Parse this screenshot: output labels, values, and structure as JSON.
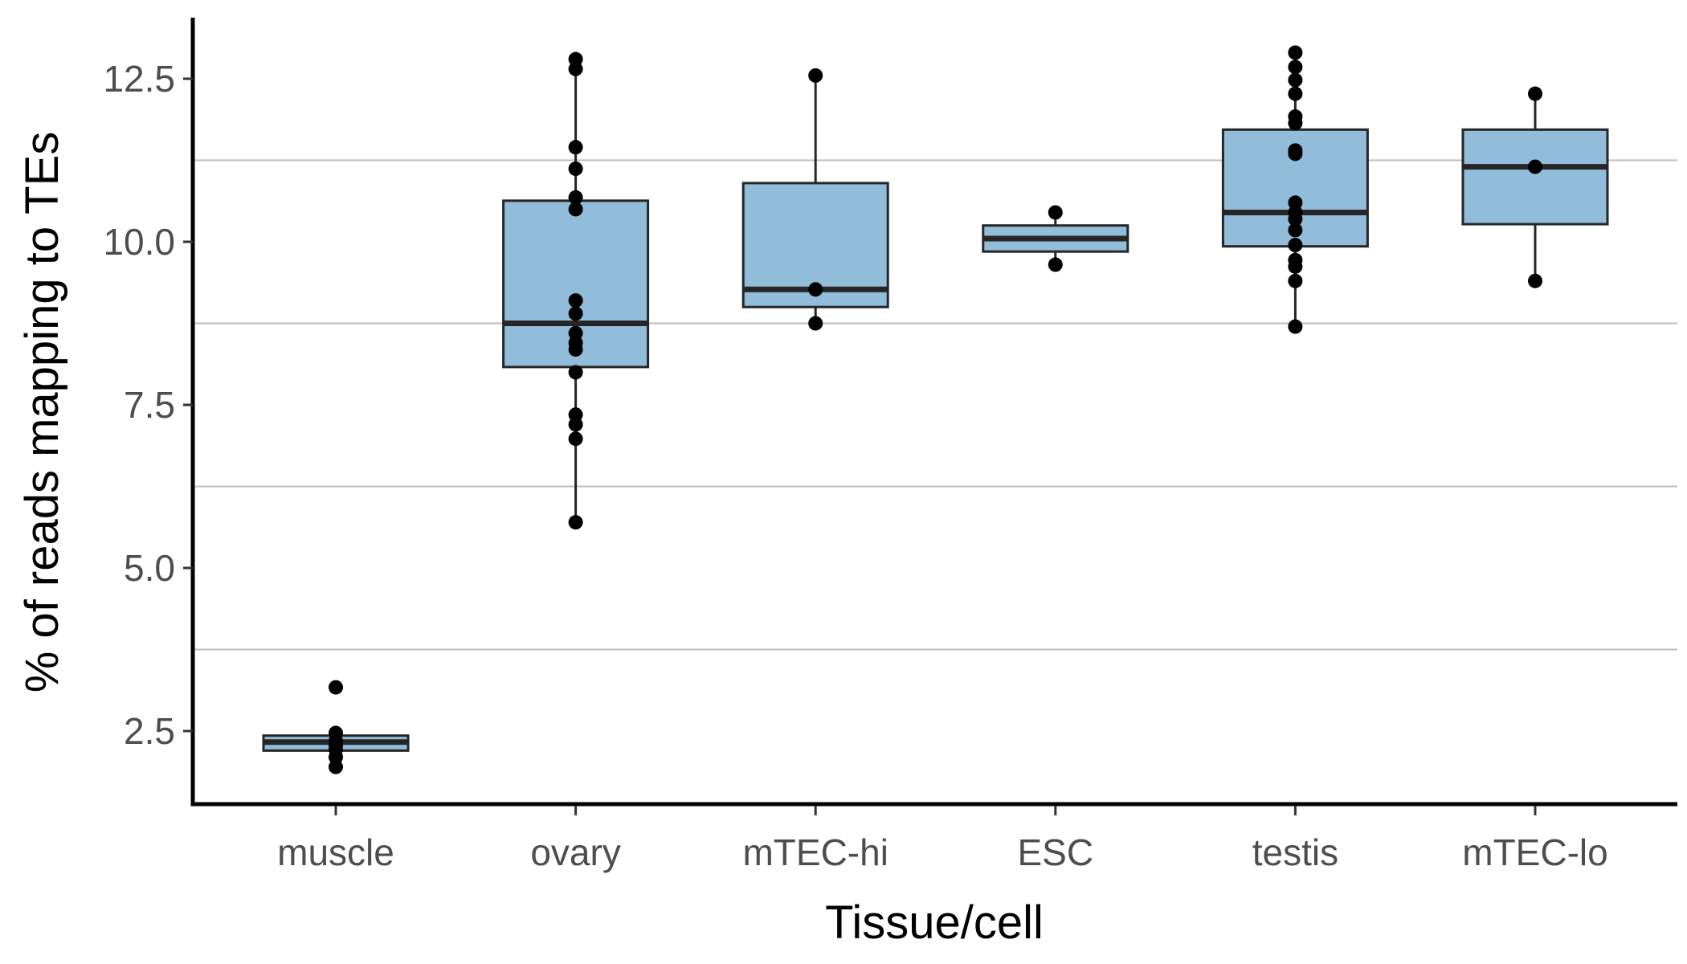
{
  "chart_data": {
    "type": "box",
    "title": "",
    "xlabel": "Tissue/cell",
    "ylabel": "% of reads mapping to TEs",
    "ylim": [
      1.3,
      13.5
    ],
    "yticks": [
      2.5,
      5.0,
      7.5,
      10.0,
      12.5
    ],
    "ytick_labels": [
      "2.5",
      "5.0",
      "7.5",
      "10.0",
      "12.5"
    ],
    "minor_gridlines_y": [
      3.75,
      6.25,
      8.75,
      11.25
    ],
    "grid": "horizontal minor lines only",
    "categories": [
      "muscle",
      "ovary",
      "mTEC-hi",
      "ESC",
      "testis",
      "mTEC-lo"
    ],
    "boxes": [
      {
        "category": "muscle",
        "whisker_low": 2.2,
        "q1": 2.2,
        "median": 2.33,
        "q3": 2.43,
        "whisker_high": 2.43
      },
      {
        "category": "ovary",
        "whisker_low": 5.7,
        "q1": 8.08,
        "median": 8.75,
        "q3": 10.63,
        "whisker_high": 12.8
      },
      {
        "category": "mTEC-hi",
        "whisker_low": 8.75,
        "q1": 9.0,
        "median": 9.27,
        "q3": 10.9,
        "whisker_high": 12.55
      },
      {
        "category": "ESC",
        "whisker_low": 9.65,
        "q1": 9.85,
        "median": 10.05,
        "q3": 10.25,
        "whisker_high": 10.45
      },
      {
        "category": "testis",
        "whisker_low": 8.7,
        "q1": 9.93,
        "median": 10.45,
        "q3": 11.72,
        "whisker_high": 12.9
      },
      {
        "category": "mTEC-lo",
        "whisker_low": 9.4,
        "q1": 10.27,
        "median": 11.15,
        "q3": 11.72,
        "whisker_high": 12.27
      }
    ],
    "points": [
      {
        "category": "muscle",
        "values": [
          3.17,
          2.47,
          2.35,
          2.28,
          2.22,
          2.1,
          1.95
        ]
      },
      {
        "category": "ovary",
        "values": [
          12.8,
          12.65,
          11.45,
          11.12,
          10.68,
          10.5,
          9.1,
          8.9,
          8.6,
          8.45,
          8.35,
          8.0,
          7.35,
          7.2,
          6.98,
          5.7
        ]
      },
      {
        "category": "mTEC-hi",
        "values": [
          12.55,
          9.27,
          8.75
        ]
      },
      {
        "category": "ESC",
        "values": [
          10.45,
          9.65
        ]
      },
      {
        "category": "testis",
        "values": [
          12.9,
          12.68,
          12.48,
          12.27,
          11.92,
          11.82,
          11.4,
          11.35,
          10.6,
          10.45,
          10.35,
          10.18,
          9.95,
          9.72,
          9.62,
          9.4,
          8.7
        ]
      },
      {
        "category": "mTEC-lo",
        "values": [
          12.27,
          11.15,
          9.4
        ]
      }
    ],
    "box_fill": "#91bddb",
    "box_stroke": "#262626",
    "point_color": "#000000",
    "gridline_color": "#bdbdbd"
  }
}
